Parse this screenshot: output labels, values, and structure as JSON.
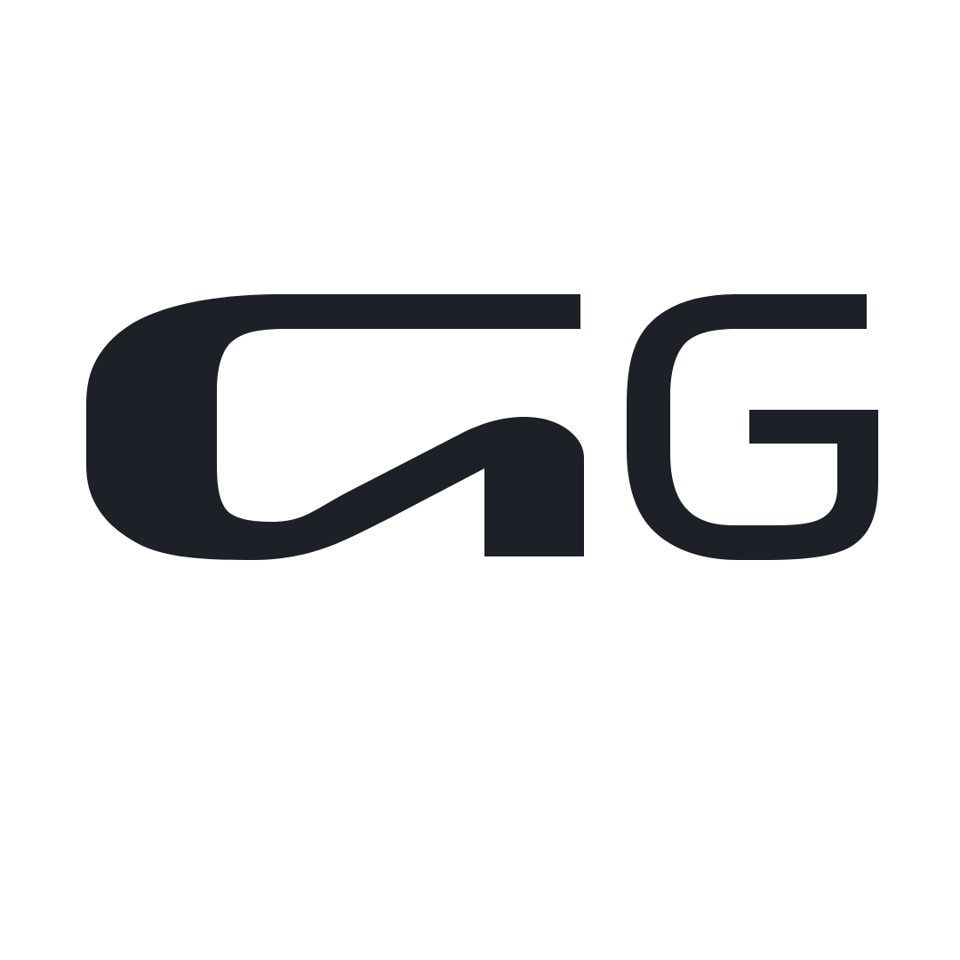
{
  "logo": {
    "text": "GG",
    "color": "#1e2027",
    "background": "#ffffff",
    "icon": "gg-monogram-logo"
  }
}
